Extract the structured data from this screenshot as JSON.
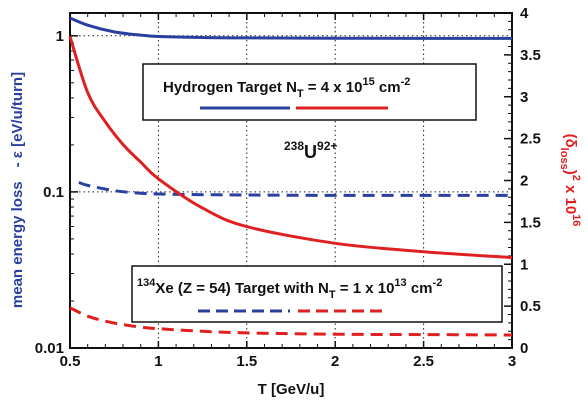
{
  "chart_data": {
    "type": "line",
    "xlabel": "T [GeV/u]",
    "ylabel_left_part1": "mean energy loss",
    "ylabel_left_part2": "- ε [eV/u/turn]",
    "ylabel_right_base": "(δ",
    "ylabel_right_sub": "loss",
    "ylabel_right_rest": ")",
    "ylabel_right_pow1": "2",
    "ylabel_right_mid": " x 10",
    "ylabel_right_pow2": "16",
    "xlim": [
      0.5,
      3
    ],
    "xticks": [
      "0.5",
      "1",
      "1.5",
      "2",
      "2.5",
      "3"
    ],
    "ylim_left": [
      0.01,
      1.4
    ],
    "yscale_left": "log",
    "yticks_left": [
      "0.01",
      "0.1",
      "1"
    ],
    "ylim_right": [
      0,
      4
    ],
    "yticks_right": [
      "0",
      "0.5",
      "1",
      "1.5",
      "2",
      "2.5",
      "3",
      "3.5",
      "4"
    ],
    "grid": "dotted vertical at x ticks, horizontal at left decades",
    "annotation": {
      "base": "U",
      "pre_sup": "238",
      "post_sup": "92+"
    },
    "legend_top": {
      "text_before": "Hydrogen Target N",
      "sub": "T",
      "text_mid": " = 4 x 10",
      "sup": "15",
      "text_after": " cm",
      "sup2": "-2"
    },
    "legend_bottom": {
      "pre_sup": "134",
      "text_before": "Xe (Z = 54) Target with N",
      "sub": "T",
      "text_mid": " = 1 x 10",
      "sup": "13",
      "text_after": " cm",
      "sup2": "-2"
    },
    "colors": {
      "blue": "#2b3fa0",
      "red": "#e02020"
    },
    "series": [
      {
        "line": "solid",
        "axis": "left",
        "color": "blue",
        "x": [
          0.5,
          0.6,
          0.75,
          0.9,
          1.0,
          1.25,
          1.5,
          2.0,
          2.5,
          3.0
        ],
        "y": [
          1.3,
          1.17,
          1.06,
          1.01,
          0.99,
          0.975,
          0.97,
          0.965,
          0.963,
          0.962
        ]
      },
      {
        "line": "dashed",
        "axis": "left",
        "color": "blue",
        "x": [
          0.55,
          0.6,
          0.75,
          0.9,
          1.0,
          1.25,
          1.5,
          2.0,
          2.5,
          3.0
        ],
        "y": [
          0.115,
          0.11,
          0.102,
          0.098,
          0.097,
          0.096,
          0.0955,
          0.095,
          0.095,
          0.095
        ]
      },
      {
        "line": "solid",
        "axis": "right",
        "color": "red",
        "x": [
          0.5,
          0.6,
          0.7,
          0.8,
          0.9,
          1.0,
          1.25,
          1.5,
          2.0,
          2.5,
          3.0
        ],
        "y": [
          3.72,
          3.05,
          2.7,
          2.43,
          2.22,
          2.02,
          1.67,
          1.45,
          1.25,
          1.15,
          1.08
        ]
      },
      {
        "line": "dashed",
        "axis": "right",
        "color": "red",
        "x": [
          0.5,
          0.6,
          0.7,
          0.8,
          0.9,
          1.0,
          1.25,
          1.5,
          2.0,
          2.5,
          3.0
        ],
        "y": [
          0.48,
          0.38,
          0.32,
          0.28,
          0.25,
          0.23,
          0.2,
          0.18,
          0.165,
          0.16,
          0.155
        ]
      }
    ]
  }
}
